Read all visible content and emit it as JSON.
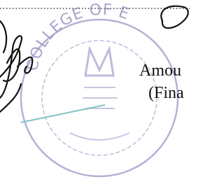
{
  "document": {
    "amount_label": "Amou",
    "amount_note": "(Fina",
    "stamp_text": "COLLEGE OF E"
  }
}
